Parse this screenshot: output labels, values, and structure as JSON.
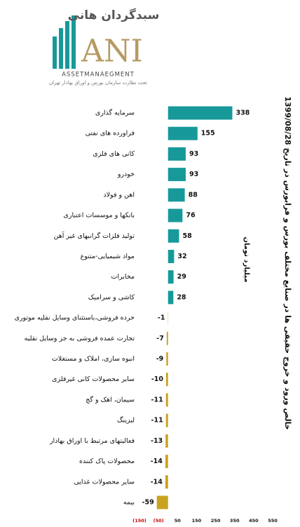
{
  "logo": {
    "brand": "سبدگردان هانی",
    "mark": "ANI",
    "tagline": "ASSETMANAEGMENT",
    "subtitle": "تحت نظارت سازمان بورس و اوراق بهادار تهران"
  },
  "chart_data": {
    "type": "hbar",
    "title": "خالص ورود و خروج حقیقی ها در صنایع مختلف بورس و فرابورس در تاریخ 1399/08/28",
    "axis_label": "میلیارد تومان",
    "categories": [
      "سرمایه گذاری",
      "فراورده های نفتی",
      "کانی های فلزی",
      "خودرو",
      "اهن و فولاد",
      "بانکها و موسسات اعتباری",
      "تولید فلزات گرانبهای غیر آهن",
      "مواد شیمیایی-متنوع",
      "مخابرات",
      "کاشی و سرامیک",
      "خرده فروشی،باستثنای وسایل نقلیه موتوری",
      "تجارت عمده فروشی به جز وسایل نقلیه",
      "انبوه سازی، املاک و مستغلات",
      "سایر محصولات کانی غیرفلزی",
      "سیمان، اهک و گچ",
      "لیزینگ",
      "فعالیتهای مرتبط با اوراق بهادار",
      "محصولات پاک کننده",
      "سایر محصولات غذایی",
      "بیمه"
    ],
    "values": [
      338,
      155,
      93,
      93,
      88,
      76,
      58,
      32,
      29,
      28,
      -1,
      -7,
      -9,
      -10,
      -11,
      -11,
      -13,
      -14,
      -14,
      -59
    ],
    "positive_color": "#17999a",
    "negative_color": "#c9a21e",
    "negative_tick_color": "#c00000",
    "xlim": [
      -150,
      550
    ],
    "xticks": [
      {
        "value": -150,
        "label": "(150)"
      },
      {
        "value": -50,
        "label": "(50)"
      },
      50,
      150,
      250,
      350,
      450,
      550
    ]
  }
}
